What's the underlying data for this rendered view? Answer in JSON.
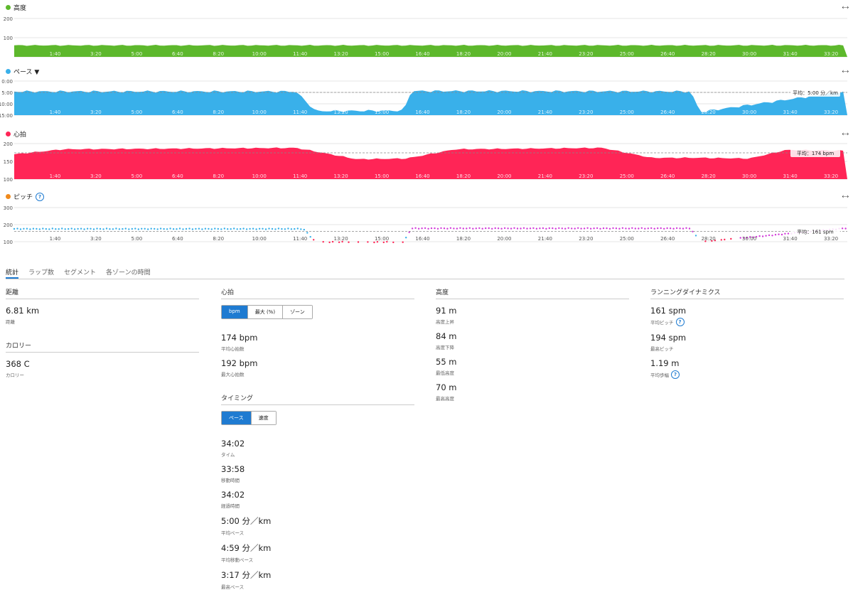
{
  "colors": {
    "altitude": "#5db82c",
    "pace": "#39b0ea",
    "heart": "#ff2556",
    "pitch": "#f08a1c",
    "accent": "#1f7bd1"
  },
  "x_ticks": [
    "1:40",
    "3:20",
    "5:00",
    "6:40",
    "8:20",
    "10:00",
    "11:40",
    "13:20",
    "15:00",
    "16:40",
    "18:20",
    "20:00",
    "21:40",
    "23:20",
    "25:00",
    "26:40",
    "28:20",
    "30:00",
    "31:40",
    "33:20"
  ],
  "charts": {
    "altitude": {
      "title": "高度",
      "y_ticks": [
        "200",
        "100",
        ""
      ]
    },
    "pace": {
      "title": "ペース ▼",
      "y_ticks": [
        "0:00",
        "5:00",
        "10:00",
        "15:00"
      ],
      "avg_label": "平均：5:00 分／km"
    },
    "heart": {
      "title": "心拍",
      "y_ticks": [
        "200",
        "150",
        "100"
      ],
      "avg_label": "平均：174 bpm"
    },
    "pitch": {
      "title": "ピッチ",
      "y_ticks": [
        "300",
        "200",
        "100"
      ],
      "avg_label": "平均：161 spm"
    }
  },
  "tabs": [
    "統計",
    "ラップ数",
    "セグメント",
    "各ゾーンの時間"
  ],
  "distance": {
    "title": "距離",
    "stats": [
      {
        "value": "6.81 km",
        "label": "距離"
      }
    ]
  },
  "calories": {
    "title": "カロリー",
    "stats": [
      {
        "value": "368 C",
        "label": "カロリー"
      }
    ]
  },
  "heart_section": {
    "title": "心拍",
    "toggle": [
      "bpm",
      "最大 (%)",
      "ゾーン"
    ],
    "stats": [
      {
        "value": "174 bpm",
        "label": "平均心拍数"
      },
      {
        "value": "192 bpm",
        "label": "最大心拍数"
      }
    ]
  },
  "timing": {
    "title": "タイミング",
    "toggle": [
      "ペース",
      "速度"
    ],
    "stats": [
      {
        "value": "34:02",
        "label": "タイム"
      },
      {
        "value": "33:58",
        "label": "移動時間"
      },
      {
        "value": "34:02",
        "label": "経過時間"
      },
      {
        "value": "5:00 分／km",
        "label": "平均ペース"
      },
      {
        "value": "4:59 分／km",
        "label": "平均移動ペース"
      },
      {
        "value": "3:17 分／km",
        "label": "最高ペース"
      }
    ]
  },
  "elevation": {
    "title": "高度",
    "stats": [
      {
        "value": "91 m",
        "label": "高度上昇"
      },
      {
        "value": "84 m",
        "label": "高度下降"
      },
      {
        "value": "55 m",
        "label": "最低高度"
      },
      {
        "value": "70 m",
        "label": "最高高度"
      }
    ]
  },
  "dynamics": {
    "title": "ランニングダイナミクス",
    "stats": [
      {
        "value": "161 spm",
        "label": "平均ピッチ"
      },
      {
        "value": "194 spm",
        "label": "最高ピッチ"
      },
      {
        "value": "1.19 m",
        "label": "平均歩幅"
      }
    ]
  },
  "chart_data": [
    {
      "type": "area",
      "title": "高度",
      "ylim": [
        0,
        200
      ],
      "x": [
        0,
        17,
        34
      ],
      "series": [
        {
          "name": "高度",
          "values": [
            60,
            60,
            60
          ]
        }
      ]
    },
    {
      "type": "area",
      "title": "ペース",
      "ylim": [
        15,
        0
      ],
      "x": [
        0,
        11.5,
        12.3,
        15.9,
        16.2,
        27.6,
        28.0,
        34
      ],
      "series": [
        {
          "name": "ペース",
          "values": [
            4.6,
            4.6,
            13.2,
            13.0,
            4.4,
            4.6,
            13.6,
            4.4
          ]
        }
      ],
      "average": 5.0
    },
    {
      "type": "area",
      "title": "心拍",
      "ylim": [
        100,
        200
      ],
      "x": [
        0,
        2,
        11.5,
        14,
        16,
        18,
        24,
        26,
        28,
        30,
        31.5,
        34
      ],
      "series": [
        {
          "name": "心拍",
          "values": [
            170,
            184,
            188,
            156,
            158,
            184,
            188,
            160,
            160,
            158,
            182,
            180
          ]
        }
      ],
      "average": 174
    },
    {
      "type": "scatter",
      "title": "ピッチ",
      "ylim": [
        100,
        300
      ],
      "x": [
        0,
        11.8,
        12.3,
        15.9,
        16.2,
        27.6,
        28.0,
        34
      ],
      "series": [
        {
          "name": "ピッチ",
          "values": [
            175,
            175,
            98,
            98,
            178,
            178,
            98,
            180
          ]
        }
      ],
      "average": 161
    }
  ]
}
